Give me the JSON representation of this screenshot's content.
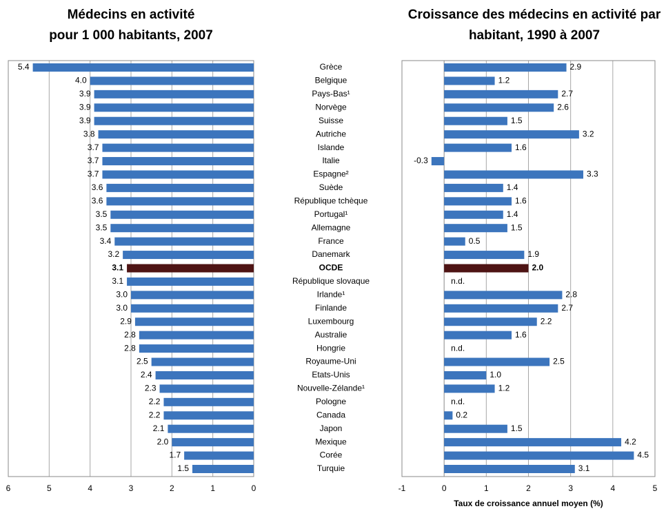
{
  "chart_data": [
    {
      "type": "bar",
      "orientation": "horizontal",
      "title": [
        "Médecins en activité",
        "pour 1 000 habitants, 2007"
      ],
      "categories": [
        "Grèce",
        "Belgique",
        "Pays-Bas¹",
        "Norvège",
        "Suisse",
        "Autriche",
        "Islande",
        "Italie",
        "Espagne²",
        "Suède",
        "République tchèque",
        "Portugal¹",
        "Allemagne",
        "France",
        "Danemark",
        "OCDE",
        "République slovaque",
        "Irlande¹",
        "Finlande",
        "Luxembourg",
        "Australie",
        "Hongrie",
        "Royaume-Uni",
        "Etats-Unis",
        "Nouvelle-Zélande¹",
        "Pologne",
        "Canada",
        "Japon",
        "Mexique",
        "Corée",
        "Turquie"
      ],
      "values": [
        5.4,
        4.0,
        3.9,
        3.9,
        3.9,
        3.8,
        3.7,
        3.7,
        3.7,
        3.6,
        3.6,
        3.5,
        3.5,
        3.4,
        3.2,
        3.1,
        3.1,
        3.0,
        3.0,
        2.9,
        2.8,
        2.8,
        2.5,
        2.4,
        2.3,
        2.2,
        2.2,
        2.1,
        2.0,
        1.7,
        1.5
      ],
      "value_labels": [
        "5.4",
        "4.0",
        "3.9",
        "3.9",
        "3.9",
        "3.8",
        "3.7",
        "3.7",
        "3.7",
        "3.6",
        "3.6",
        "3.5",
        "3.5",
        "3.4",
        "3.2",
        "3.1",
        "3.1",
        "3.0",
        "3.0",
        "2.9",
        "2.8",
        "2.8",
        "2.5",
        "2.4",
        "2.3",
        "2.2",
        "2.2",
        "2.1",
        "2.0",
        "1.7",
        "1.5"
      ],
      "color": "#3c75bd",
      "xlim": [
        6,
        0
      ],
      "xticks": [
        6,
        5,
        4,
        3,
        2,
        1,
        0
      ],
      "grid": true,
      "highlight": {
        "category": "OCDE",
        "bar_color": "#4e1414",
        "bold": true
      },
      "red_label": {
        "category": "Suisse",
        "color": "#e8281e"
      }
    },
    {
      "type": "bar",
      "orientation": "horizontal",
      "title": [
        "Croissance des médecins en activité par",
        "habitant, 1990 à 2007"
      ],
      "x_label": "Taux de croissance annuel moyen (%)",
      "values": [
        2.9,
        1.2,
        2.7,
        2.6,
        1.5,
        3.2,
        1.6,
        -0.3,
        3.3,
        1.4,
        1.6,
        1.4,
        1.5,
        0.5,
        1.9,
        2.0,
        null,
        2.8,
        2.7,
        2.2,
        1.6,
        null,
        2.5,
        1.0,
        1.2,
        null,
        0.2,
        1.5,
        4.2,
        4.5,
        3.1
      ],
      "value_labels": [
        "2.9",
        "1.2",
        "2.7",
        "2.6",
        "1.5",
        "3.2",
        "1.6",
        "-0.3",
        "3.3",
        "1.4",
        "1.6",
        "1.4",
        "1.5",
        "0.5",
        "1.9",
        "2.0",
        "n.d.",
        "2.8",
        "2.7",
        "2.2",
        "1.6",
        "n.d.",
        "2.5",
        "1.0",
        "1.2",
        "n.d.",
        "0.2",
        "1.5",
        "4.2",
        "4.5",
        "3.1"
      ],
      "color": "#3c75bd",
      "xlim": [
        -1,
        5
      ],
      "xticks": [
        -1,
        0,
        1,
        2,
        3,
        4,
        5
      ],
      "grid": true,
      "highlight": {
        "category": "OCDE",
        "bar_color": "#4e1414",
        "bold": true
      }
    }
  ]
}
